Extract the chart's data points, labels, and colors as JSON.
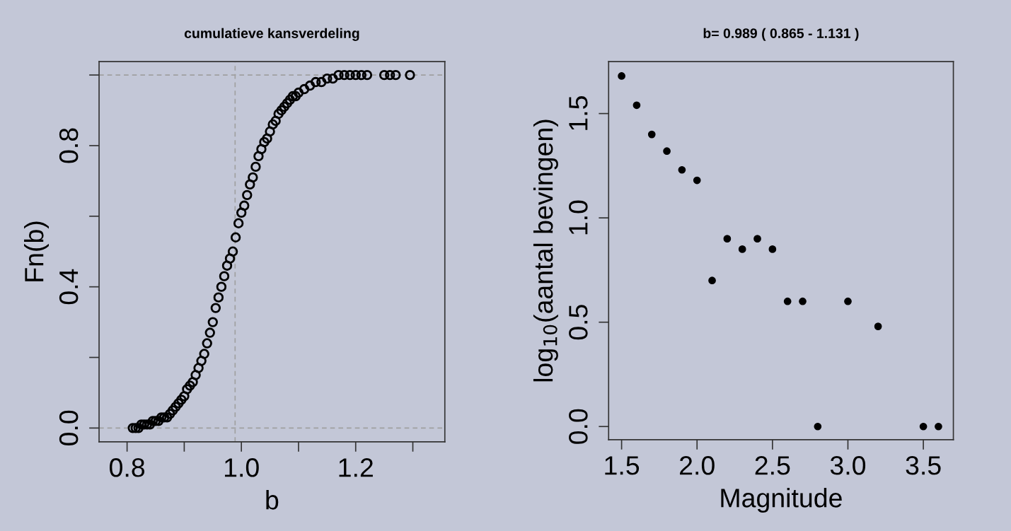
{
  "chart_data": [
    {
      "type": "scatter",
      "title": "cumulatieve kansverdeling",
      "xlabel": "b",
      "ylabel": "Fn(b)",
      "marker": "circle",
      "grid": false,
      "xlim": [
        0.751,
        1.356
      ],
      "ylim": [
        -0.039,
        1.038
      ],
      "xticks": [
        0.8,
        {
          "value": 0.9,
          "label": null
        },
        {
          "value": 1.0,
          "label": "1.0"
        },
        {
          "value": 1.1,
          "label": null
        },
        1.2,
        {
          "value": 1.3,
          "label": null
        }
      ],
      "yticks": [
        {
          "value": 0,
          "label": "0.0"
        },
        {
          "value": 0.2,
          "label": null
        },
        0.4,
        {
          "value": 0.6,
          "label": null
        },
        0.8,
        {
          "value": 1.0,
          "label": null
        }
      ],
      "ref_lines": [
        {
          "axis": "y",
          "value": 0,
          "label": null,
          "color": "#a0a0a0",
          "line_style": "dashed"
        },
        {
          "axis": "y",
          "value": 1,
          "label": null,
          "color": "#a0a0a0",
          "line_style": "dashed"
        },
        {
          "axis": "x",
          "value": 0.989,
          "label": null,
          "color": "#a0a0a0",
          "line_style": "dashed"
        }
      ],
      "series": [
        {
          "color": "#000000",
          "x": [
            0.81,
            0.815,
            0.82,
            0.825,
            0.83,
            0.835,
            0.84,
            0.845,
            0.85,
            0.855,
            0.86,
            0.865,
            0.87,
            0.875,
            0.88,
            0.885,
            0.89,
            0.895,
            0.9,
            0.905,
            0.91,
            0.915,
            0.92,
            0.925,
            0.93,
            0.935,
            0.94,
            0.945,
            0.95,
            0.955,
            0.96,
            0.965,
            0.97,
            0.975,
            0.98,
            0.985,
            0.99,
            0.995,
            1.0,
            1.005,
            1.01,
            1.015,
            1.02,
            1.025,
            1.03,
            1.035,
            1.04,
            1.045,
            1.05,
            1.055,
            1.06,
            1.065,
            1.07,
            1.075,
            1.08,
            1.085,
            1.09,
            1.095,
            1.1,
            1.11,
            1.12,
            1.13,
            1.14,
            1.15,
            1.16,
            1.17,
            1.18,
            1.19,
            1.2,
            1.21,
            1.22,
            1.25,
            1.26,
            1.27,
            1.295
          ],
          "values": [
            0.0,
            0.0,
            0.0,
            0.01,
            0.01,
            0.01,
            0.01,
            0.02,
            0.02,
            0.02,
            0.03,
            0.03,
            0.03,
            0.04,
            0.05,
            0.06,
            0.07,
            0.08,
            0.09,
            0.11,
            0.12,
            0.13,
            0.15,
            0.17,
            0.19,
            0.21,
            0.24,
            0.27,
            0.3,
            0.34,
            0.37,
            0.4,
            0.43,
            0.46,
            0.48,
            0.5,
            0.54,
            0.58,
            0.61,
            0.63,
            0.66,
            0.69,
            0.71,
            0.74,
            0.77,
            0.79,
            0.81,
            0.82,
            0.84,
            0.86,
            0.87,
            0.89,
            0.9,
            0.91,
            0.92,
            0.93,
            0.94,
            0.94,
            0.95,
            0.96,
            0.97,
            0.98,
            0.98,
            0.99,
            0.99,
            1.0,
            1.0,
            1.0,
            1.0,
            1.0,
            1.0,
            1.0,
            1.0,
            1.0,
            1.0
          ]
        }
      ]
    },
    {
      "type": "scatter",
      "title": "b= 0.989 ( 0.865 - 1.131 )",
      "xlabel": "Magnitude",
      "ylabel": "log$_{10}$(aantal bevingen)",
      "marker": "circle",
      "grid": false,
      "xlim": [
        1.414,
        3.699
      ],
      "ylim": [
        -0.063,
        1.749
      ],
      "xticks": [
        1.5,
        {
          "value": 2.0,
          "label": "2.0"
        },
        2.5,
        {
          "value": 3.0,
          "label": "3.0"
        },
        3.5
      ],
      "yticks": [
        {
          "value": 0,
          "label": "0.0"
        },
        0.5,
        {
          "value": 1.0,
          "label": "1.0"
        },
        1.5
      ],
      "series": [
        {
          "color": "#000000",
          "x": [
            1.5,
            1.6,
            1.7,
            1.8,
            1.9,
            2.0,
            2.1,
            2.2,
            2.3,
            2.4,
            2.5,
            2.6,
            2.7,
            2.8,
            3.0,
            3.2,
            3.5,
            3.6
          ],
          "values": [
            1.68,
            1.54,
            1.4,
            1.32,
            1.23,
            1.18,
            0.7,
            0.9,
            0.85,
            0.9,
            0.85,
            0.6,
            0.6,
            0,
            0.6,
            0.48,
            0,
            0
          ]
        }
      ]
    }
  ]
}
